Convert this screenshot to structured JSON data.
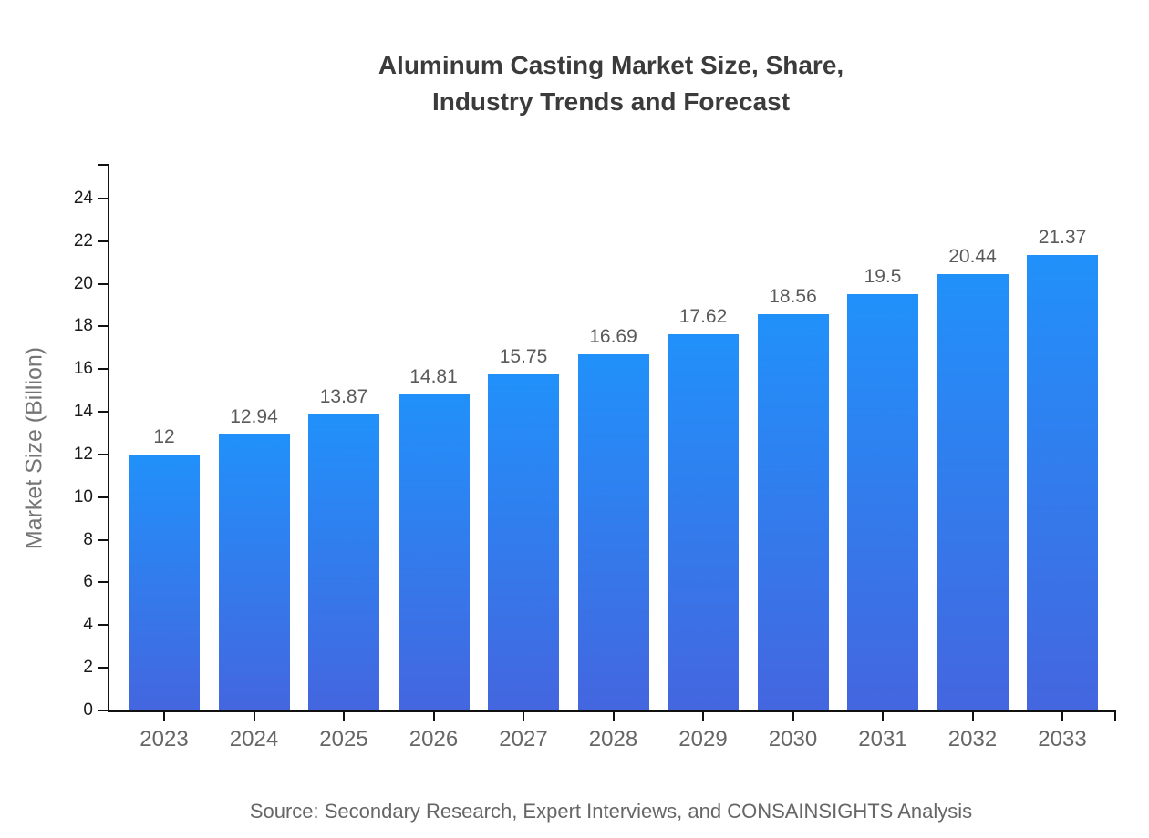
{
  "header": {
    "title_line1": "Aluminum Casting Market Size, Share,",
    "title_line2": "Industry Trends and Forecast"
  },
  "footer": {
    "source": "Source: Secondary Research, Expert Interviews, and CONSAINSIGHTS Analysis"
  },
  "chart_data": {
    "type": "bar",
    "title": "Aluminum Casting Market Size, Share, Industry Trends and Forecast",
    "categories": [
      "2023",
      "2024",
      "2025",
      "2026",
      "2027",
      "2028",
      "2029",
      "2030",
      "2031",
      "2032",
      "2033"
    ],
    "values": [
      12,
      12.94,
      13.87,
      14.81,
      15.75,
      16.69,
      17.62,
      18.56,
      19.5,
      20.44,
      21.37
    ],
    "value_labels": [
      "12",
      "12.94",
      "13.87",
      "14.81",
      "15.75",
      "16.69",
      "17.62",
      "18.56",
      "19.5",
      "20.44",
      "21.37"
    ],
    "xlabel": "",
    "ylabel": "Market Size (Billion)",
    "ylim": [
      0,
      25.62
    ],
    "yticks": [
      0,
      2,
      4,
      6,
      8,
      10,
      12,
      14,
      16,
      18,
      20,
      22,
      24
    ],
    "grid": false,
    "legend": false,
    "colors": {
      "bar_gradient_top": "#2191fa",
      "bar_gradient_bottom": "#4466df",
      "axis": "#111111",
      "x_tick_label": "#666666",
      "y_tick_label": "#1a1a1a",
      "value_label": "#5a5a5a",
      "title": "#3b3b3b",
      "y_axis_title": "#757575",
      "source": "#666666"
    }
  }
}
